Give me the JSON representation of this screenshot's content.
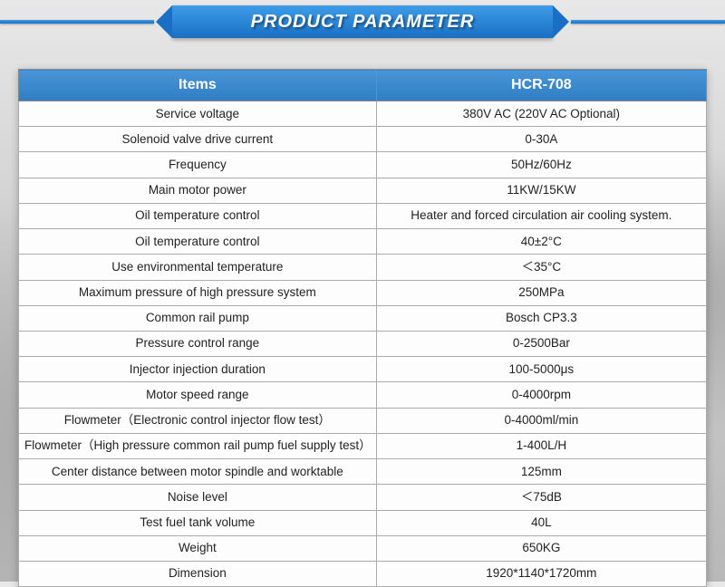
{
  "banner": {
    "title": "PRODUCT PARAMETER"
  },
  "table": {
    "headers": [
      "Items",
      "HCR-708"
    ],
    "rows": [
      [
        "Service voltage",
        "380V AC (220V AC Optional)"
      ],
      [
        "Solenoid valve drive current",
        "0-30A"
      ],
      [
        "Frequency",
        "50Hz/60Hz"
      ],
      [
        "Main motor power",
        "11KW/15KW"
      ],
      [
        "Oil temperature control",
        "Heater and forced circulation air cooling system."
      ],
      [
        "Oil temperature control",
        "40±2°C"
      ],
      [
        "Use environmental temperature",
        "＜35°C"
      ],
      [
        "Maximum pressure of high pressure system",
        "250MPa"
      ],
      [
        "Common rail pump",
        "Bosch CP3.3"
      ],
      [
        "Pressure control range",
        "0-2500Bar"
      ],
      [
        "Injector injection duration",
        "100-5000μs"
      ],
      [
        "Motor speed range",
        "0-4000rpm"
      ],
      [
        "Flowmeter（Electronic control injector flow test）",
        "0-4000ml/min"
      ],
      [
        "Flowmeter（High pressure common rail pump fuel supply test）",
        "1-400L/H"
      ],
      [
        "Center distance between motor spindle and worktable",
        "125mm"
      ],
      [
        "Noise level",
        "＜75dB"
      ],
      [
        "Test fuel tank volume",
        "40L"
      ],
      [
        "Weight",
        "650KG"
      ],
      [
        "Dimension",
        "1920*1140*1720mm"
      ]
    ]
  },
  "style": {
    "header_bg_top": "#4a95d8",
    "header_bg_bottom": "#2f7dc4",
    "header_text_color": "#ffffff",
    "cell_text_color": "#222222",
    "cell_bg": "#fdfdfd",
    "border_color": "#aaaaaa",
    "banner_gradient_top": "#3d9de8",
    "banner_gradient_bottom": "#1a6fc4",
    "font_family": "Arial",
    "header_fontsize": 16,
    "cell_fontsize": 13.5,
    "title_fontsize": 20
  }
}
